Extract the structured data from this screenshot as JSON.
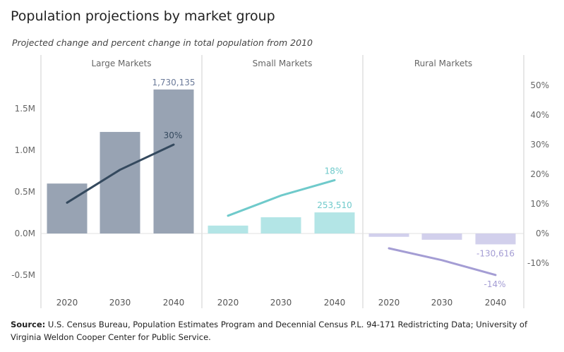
{
  "title": "Population projections by market group",
  "subtitle": "Projected change and percent change in total population from 2010",
  "source": {
    "label": "Source:",
    "text": "U.S. Census Bureau, Population Estimates Program and Decennial Census P.L. 94-171 Redistricting Data; University of Virginia Weldon Cooper Center for Public Service."
  },
  "chart_data": {
    "type": "bar",
    "panels": [
      "Large Markets",
      "Small Markets",
      "Rural Markets"
    ],
    "categories": [
      "2020",
      "2030",
      "2040"
    ],
    "left_axis": {
      "ticks": [
        "-0.5M",
        "0.0M",
        "0.5M",
        "1.0M",
        "1.5M"
      ],
      "tick_values": [
        -500000,
        0,
        500000,
        1000000,
        1500000
      ],
      "range": [
        -700000,
        1900000
      ]
    },
    "right_axis": {
      "ticks": [
        "-10%",
        "0%",
        "10%",
        "20%",
        "30%",
        "40%",
        "50%"
      ],
      "tick_values": [
        -10,
        0,
        10,
        20,
        30,
        40,
        50
      ],
      "range": [
        -18.5,
        50
      ]
    },
    "series": [
      {
        "panel": "Large Markets",
        "bar_color": "#98a3b3",
        "line_color": "#34495e",
        "change": [
          600000,
          1220000,
          1730135
        ],
        "percent": [
          10.4,
          21.5,
          30
        ],
        "bar_label": "1,730,135",
        "line_label": "30%"
      },
      {
        "panel": "Small Markets",
        "bar_color": "#b3e5e6",
        "line_color": "#6fcacb",
        "change": [
          95000,
          195000,
          253510
        ],
        "percent": [
          6,
          12.8,
          18
        ],
        "bar_label": "253,510",
        "line_label": "18%"
      },
      {
        "panel": "Rural Markets",
        "bar_color": "#d2d0ec",
        "line_color": "#a49dd4",
        "change": [
          -40000,
          -75000,
          -130616
        ],
        "percent": [
          -5,
          -9,
          -14
        ],
        "bar_label": "-130,616",
        "line_label": "-14%"
      }
    ]
  }
}
